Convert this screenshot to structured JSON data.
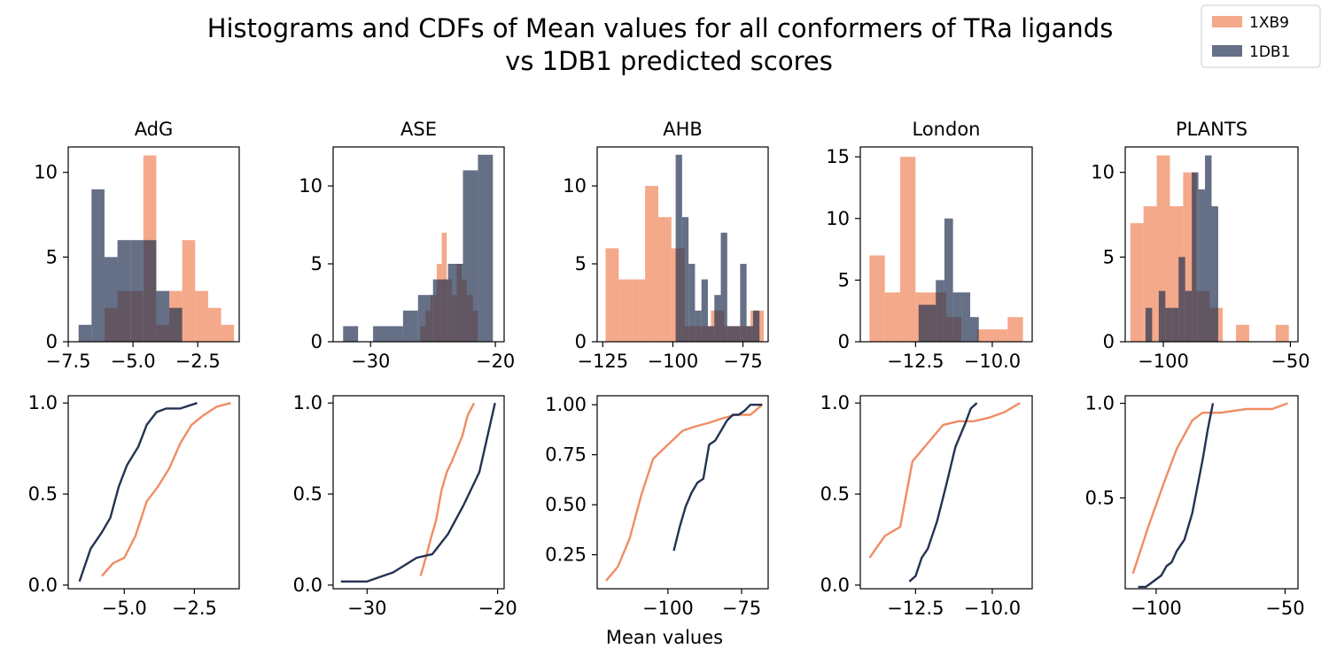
{
  "figure": {
    "title_lines": [
      "Histograms and CDFs of Mean values for all conformers of TRa ligands",
      "vs 1DB1 predicted scores"
    ],
    "xlabel": "Mean values",
    "legend": [
      {
        "name": "1XB9",
        "color": "#f08c64"
      },
      {
        "name": "1DB1",
        "color": "#243352"
      }
    ]
  },
  "chart_data": [
    {
      "type": "bar",
      "title": "AdG",
      "xlim": [
        -7.5,
        -0.9
      ],
      "ylim": [
        0,
        11.5
      ],
      "xticks": [
        -7.5,
        -5.0,
        -2.5
      ],
      "xtick_labels": [
        "−7.5",
        "−5.0",
        "−2.5"
      ],
      "yticks": [
        0,
        5,
        10
      ],
      "ytick_labels": [
        "0",
        "5",
        "10"
      ],
      "series": [
        {
          "name": "1XB9",
          "bins": [
            [
              -6.1,
              -5.6,
              2
            ],
            [
              -5.6,
              -5.1,
              3
            ],
            [
              -5.1,
              -4.6,
              3
            ],
            [
              -4.6,
              -4.1,
              11
            ],
            [
              -4.1,
              -3.6,
              1
            ],
            [
              -3.6,
              -3.1,
              3
            ],
            [
              -3.1,
              -2.6,
              6
            ],
            [
              -2.6,
              -2.1,
              3
            ],
            [
              -2.1,
              -1.6,
              2
            ],
            [
              -1.6,
              -1.1,
              1
            ]
          ]
        },
        {
          "name": "1DB1",
          "bins": [
            [
              -7.1,
              -6.6,
              1
            ],
            [
              -6.6,
              -6.1,
              9
            ],
            [
              -6.1,
              -5.6,
              5
            ],
            [
              -5.6,
              -5.1,
              6
            ],
            [
              -5.1,
              -4.6,
              6
            ],
            [
              -4.6,
              -4.1,
              6
            ],
            [
              -4.1,
              -3.6,
              3
            ],
            [
              -3.6,
              -3.1,
              2
            ]
          ]
        }
      ]
    },
    {
      "type": "bar",
      "title": "ASE",
      "xlim": [
        -33,
        -19.3
      ],
      "ylim": [
        0,
        12.5
      ],
      "xticks": [
        -30,
        -20
      ],
      "xtick_labels": [
        "−30",
        "−20"
      ],
      "yticks": [
        0,
        5,
        10
      ],
      "ytick_labels": [
        "0",
        "5",
        "10"
      ],
      "series": [
        {
          "name": "1XB9",
          "bins": [
            [
              -26,
              -25.6,
              1
            ],
            [
              -25.6,
              -25.2,
              2
            ],
            [
              -25.2,
              -24.7,
              3
            ],
            [
              -24.7,
              -24.3,
              5
            ],
            [
              -24.3,
              -23.9,
              7
            ],
            [
              -23.9,
              -23.5,
              4
            ],
            [
              -23.5,
              -23.1,
              3
            ],
            [
              -23.1,
              -22.7,
              5
            ],
            [
              -22.7,
              -22.3,
              4
            ],
            [
              -22.3,
              -21.8,
              3
            ],
            [
              -21.8,
              -21.4,
              2
            ]
          ]
        },
        {
          "name": "1DB1",
          "bins": [
            [
              -32.2,
              -31,
              1
            ],
            [
              -31,
              -29.8,
              0
            ],
            [
              -29.8,
              -28.6,
              1
            ],
            [
              -28.6,
              -27.4,
              1
            ],
            [
              -27.4,
              -26.2,
              2
            ],
            [
              -26.2,
              -25,
              3
            ],
            [
              -25,
              -23.8,
              4
            ],
            [
              -23.8,
              -22.6,
              5
            ],
            [
              -22.6,
              -21.4,
              11
            ],
            [
              -21.4,
              -20.2,
              12
            ]
          ]
        }
      ]
    },
    {
      "type": "bar",
      "title": "AHB",
      "xlim": [
        -127,
        -66
      ],
      "ylim": [
        0,
        12.5
      ],
      "xticks": [
        -125,
        -100,
        -75
      ],
      "xtick_labels": [
        "−125",
        "−100",
        "−75"
      ],
      "yticks": [
        0,
        5,
        10
      ],
      "ytick_labels": [
        "0",
        "5",
        "10"
      ],
      "series": [
        {
          "name": "1XB9",
          "bins": [
            [
              -124,
              -119.3,
              6
            ],
            [
              -119.3,
              -114.6,
              4
            ],
            [
              -114.6,
              -109.9,
              4
            ],
            [
              -109.9,
              -105.2,
              10
            ],
            [
              -105.2,
              -100.5,
              8
            ],
            [
              -100.5,
              -95.8,
              6
            ],
            [
              -95.8,
              -91.1,
              1
            ],
            [
              -91.1,
              -86.4,
              1
            ],
            [
              -86.4,
              -81.7,
              2
            ],
            [
              -81.7,
              -77,
              1
            ],
            [
              -77,
              -72.3,
              1
            ],
            [
              -72.3,
              -67.6,
              2
            ]
          ]
        },
        {
          "name": "1DB1",
          "bins": [
            [
              -99,
              -96.7,
              12
            ],
            [
              -96.7,
              -94.4,
              8
            ],
            [
              -94.4,
              -92.1,
              5
            ],
            [
              -92.1,
              -89.8,
              2
            ],
            [
              -89.8,
              -87.5,
              4
            ],
            [
              -87.5,
              -85.2,
              1
            ],
            [
              -85.2,
              -82.9,
              3
            ],
            [
              -82.9,
              -80.6,
              7
            ],
            [
              -80.6,
              -78.3,
              1
            ],
            [
              -78.3,
              -76,
              1
            ],
            [
              -76,
              -73.7,
              5
            ],
            [
              -73.7,
              -71.4,
              1
            ],
            [
              -71.4,
              -69.1,
              2
            ]
          ]
        }
      ]
    },
    {
      "type": "bar",
      "title": "London",
      "xlim": [
        -14.3,
        -8.7
      ],
      "ylim": [
        0,
        15.8
      ],
      "xticks": [
        -12.5,
        -10.0
      ],
      "xtick_labels": [
        "−12.5",
        "−10.0"
      ],
      "yticks": [
        0,
        5,
        10,
        15
      ],
      "ytick_labels": [
        "0",
        "5",
        "10",
        "15"
      ],
      "series": [
        {
          "name": "1XB9",
          "bins": [
            [
              -14,
              -13.5,
              7
            ],
            [
              -13.5,
              -13,
              4
            ],
            [
              -13,
              -12.5,
              15
            ],
            [
              -12.5,
              -12,
              4
            ],
            [
              -12,
              -11.5,
              4
            ],
            [
              -11.5,
              -11,
              2
            ],
            [
              -11,
              -10.5,
              0
            ],
            [
              -10.5,
              -10,
              1
            ],
            [
              -10,
              -9.5,
              1
            ],
            [
              -9.5,
              -9,
              2
            ]
          ]
        },
        {
          "name": "1DB1",
          "bins": [
            [
              -12.4,
              -12.12,
              3
            ],
            [
              -12.12,
              -11.84,
              3
            ],
            [
              -11.84,
              -11.56,
              5
            ],
            [
              -11.56,
              -11.28,
              10
            ],
            [
              -11.28,
              -11,
              4
            ],
            [
              -11,
              -10.72,
              4
            ],
            [
              -10.72,
              -10.44,
              2
            ]
          ]
        }
      ]
    },
    {
      "type": "bar",
      "title": "PLANTS",
      "xlim": [
        -115,
        -47
      ],
      "ylim": [
        0,
        11.5
      ],
      "xticks": [
        -100,
        -50
      ],
      "xtick_labels": [
        "−100",
        "−50"
      ],
      "yticks": [
        0,
        5,
        10
      ],
      "ytick_labels": [
        "0",
        "5",
        "10"
      ],
      "series": [
        {
          "name": "1XB9",
          "bins": [
            [
              -113,
              -107.8,
              7
            ],
            [
              -107.8,
              -102.6,
              8
            ],
            [
              -102.6,
              -97.4,
              11
            ],
            [
              -97.4,
              -92.2,
              8
            ],
            [
              -92.2,
              -87,
              10
            ],
            [
              -87,
              -81.8,
              3
            ],
            [
              -81.8,
              -76.6,
              2
            ],
            [
              -76.6,
              -71.4,
              0
            ],
            [
              -71.4,
              -66.2,
              1
            ],
            [
              -66.2,
              -61,
              0
            ],
            [
              -61,
              -55.8,
              0
            ],
            [
              -55.8,
              -50.6,
              1
            ]
          ]
        },
        {
          "name": "1DB1",
          "bins": [
            [
              -107,
              -104.4,
              2
            ],
            [
              -104.4,
              -101.8,
              0
            ],
            [
              -101.8,
              -99.2,
              3
            ],
            [
              -99.2,
              -96.6,
              2
            ],
            [
              -96.6,
              -94,
              2
            ],
            [
              -94,
              -91.4,
              5
            ],
            [
              -91.4,
              -88.8,
              3
            ],
            [
              -88.8,
              -86.2,
              10
            ],
            [
              -86.2,
              -83.6,
              9
            ],
            [
              -83.6,
              -81,
              11
            ],
            [
              -81,
              -78.4,
              8
            ]
          ]
        }
      ]
    },
    {
      "type": "line",
      "title": "",
      "xlim": [
        -7.0,
        -0.9
      ],
      "ylim": [
        -0.02,
        1.04
      ],
      "xticks": [
        -5.0,
        -2.5
      ],
      "xtick_labels": [
        "−5.0",
        "−2.5"
      ],
      "yticks": [
        0,
        0.5,
        1.0
      ],
      "ytick_labels": [
        "0.0",
        "0.5",
        "1.0"
      ],
      "series": [
        {
          "name": "1XB9",
          "x": [
            -5.8,
            -5.4,
            -5.0,
            -4.6,
            -4.2,
            -3.8,
            -3.4,
            -3.0,
            -2.6,
            -2.2,
            -1.7,
            -1.2
          ],
          "y": [
            0.05,
            0.12,
            0.15,
            0.27,
            0.46,
            0.54,
            0.64,
            0.78,
            0.88,
            0.93,
            0.98,
            1.0
          ]
        },
        {
          "name": "1DB1",
          "x": [
            -6.6,
            -6.2,
            -5.8,
            -5.5,
            -5.2,
            -4.9,
            -4.5,
            -4.2,
            -3.85,
            -3.5,
            -3.0,
            -2.4
          ],
          "y": [
            0.02,
            0.2,
            0.29,
            0.37,
            0.54,
            0.66,
            0.76,
            0.88,
            0.95,
            0.97,
            0.97,
            1.0
          ]
        }
      ]
    },
    {
      "type": "line",
      "title": "",
      "xlim": [
        -32.6,
        -19.5
      ],
      "ylim": [
        -0.02,
        1.04
      ],
      "xticks": [
        -30,
        -20
      ],
      "xtick_labels": [
        "−30",
        "−20"
      ],
      "yticks": [
        0,
        0.5,
        1.0
      ],
      "ytick_labels": [
        "0.0",
        "0.5",
        "1.0"
      ],
      "series": [
        {
          "name": "1XB9",
          "x": [
            -25.9,
            -25.5,
            -25.1,
            -24.7,
            -24.3,
            -23.9,
            -23.5,
            -23.1,
            -22.7,
            -22.3,
            -21.8
          ],
          "y": [
            0.05,
            0.15,
            0.26,
            0.36,
            0.52,
            0.62,
            0.68,
            0.75,
            0.82,
            0.93,
            1.0
          ]
        },
        {
          "name": "1DB1",
          "x": [
            -32,
            -30,
            -28,
            -26.2,
            -25,
            -23.8,
            -22.6,
            -21.4,
            -20.2
          ],
          "y": [
            0.02,
            0.02,
            0.07,
            0.15,
            0.17,
            0.28,
            0.44,
            0.62,
            1.0
          ]
        }
      ]
    },
    {
      "type": "line",
      "title": "",
      "xlim": [
        -124,
        -66
      ],
      "ylim": [
        0.08,
        1.045
      ],
      "xticks": [
        -100,
        -75
      ],
      "xtick_labels": [
        "−100",
        "−75"
      ],
      "yticks": [
        0.25,
        0.5,
        0.75,
        1.0
      ],
      "ytick_labels": [
        "0.25",
        "0.50",
        "0.75",
        "1.00"
      ],
      "series": [
        {
          "name": "1XB9",
          "x": [
            -121,
            -117,
            -113,
            -109,
            -105,
            -100,
            -95,
            -91,
            -86,
            -82,
            -77,
            -72,
            -68
          ],
          "y": [
            0.12,
            0.19,
            0.33,
            0.55,
            0.73,
            0.8,
            0.87,
            0.89,
            0.91,
            0.93,
            0.95,
            0.95,
            1.0
          ]
        },
        {
          "name": "1DB1",
          "x": [
            -98,
            -96,
            -94,
            -92,
            -90,
            -88,
            -86,
            -84,
            -82,
            -80,
            -78,
            -76,
            -74,
            -72,
            -70,
            -68
          ],
          "y": [
            0.27,
            0.39,
            0.49,
            0.56,
            0.61,
            0.63,
            0.8,
            0.82,
            0.87,
            0.92,
            0.95,
            0.95,
            0.97,
            1.0,
            1.0,
            1.0
          ]
        }
      ]
    },
    {
      "type": "line",
      "title": "",
      "xlim": [
        -14.3,
        -8.7
      ],
      "ylim": [
        -0.02,
        1.04
      ],
      "xticks": [
        -12.5,
        -10.0
      ],
      "xtick_labels": [
        "−12.5",
        "−10.0"
      ],
      "yticks": [
        0,
        0.5,
        1.0
      ],
      "ytick_labels": [
        "0.0",
        "0.5",
        "1.0"
      ],
      "series": [
        {
          "name": "1XB9",
          "x": [
            -14,
            -13.5,
            -13,
            -12.6,
            -12.1,
            -11.6,
            -11.1,
            -10.6,
            -10.1,
            -9.6,
            -9.1
          ],
          "y": [
            0.15,
            0.27,
            0.32,
            0.68,
            0.78,
            0.88,
            0.9,
            0.9,
            0.92,
            0.95,
            1.0
          ]
        },
        {
          "name": "1DB1",
          "x": [
            -12.7,
            -12.5,
            -12.3,
            -12.1,
            -11.8,
            -11.5,
            -11.2,
            -10.9,
            -10.7,
            -10.5
          ],
          "y": [
            0.02,
            0.05,
            0.15,
            0.2,
            0.35,
            0.55,
            0.76,
            0.88,
            0.97,
            1.0
          ]
        }
      ]
    },
    {
      "type": "line",
      "title": "",
      "xlim": [
        -112,
        -45
      ],
      "ylim": [
        0.02,
        1.04
      ],
      "xticks": [
        -100,
        -50
      ],
      "xtick_labels": [
        "−100",
        "−50"
      ],
      "yticks": [
        0.5,
        1.0
      ],
      "ytick_labels": [
        "0.5",
        "1.0"
      ],
      "series": [
        {
          "name": "1XB9",
          "x": [
            -109,
            -103,
            -97,
            -92,
            -86,
            -82,
            -75,
            -65,
            -55,
            -49
          ],
          "y": [
            0.1,
            0.35,
            0.58,
            0.76,
            0.91,
            0.95,
            0.95,
            0.97,
            0.97,
            1.0
          ]
        },
        {
          "name": "1DB1",
          "x": [
            -107,
            -104,
            -101,
            -98,
            -96,
            -94,
            -92,
            -89,
            -86,
            -84,
            -82,
            -80,
            -78
          ],
          "y": [
            0.03,
            0.03,
            0.06,
            0.09,
            0.14,
            0.16,
            0.22,
            0.28,
            0.42,
            0.56,
            0.7,
            0.86,
            1.0
          ]
        }
      ]
    }
  ]
}
